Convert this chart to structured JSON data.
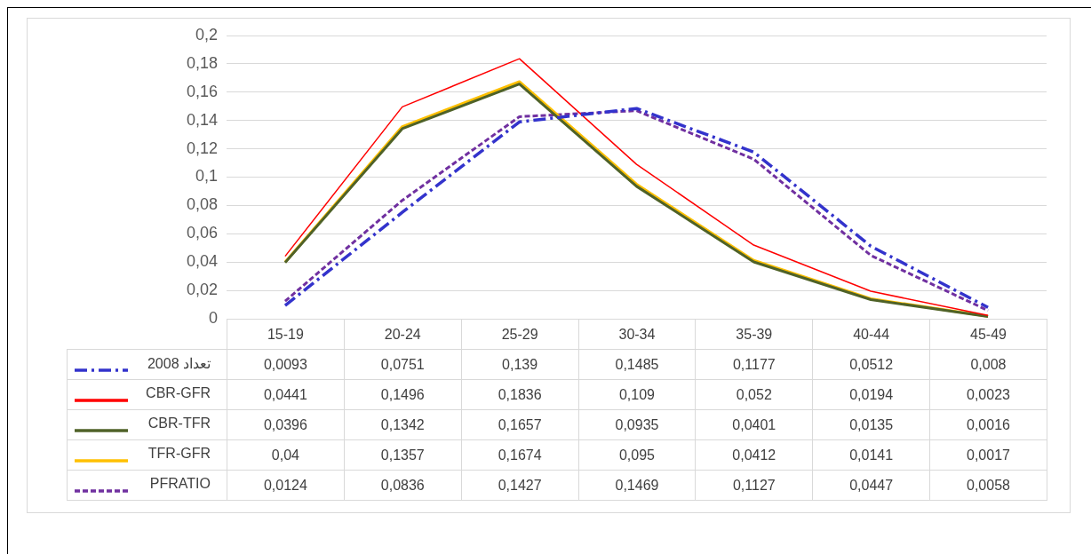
{
  "chart_data": {
    "type": "line",
    "categories": [
      "15-19",
      "20-24",
      "25-29",
      "30-34",
      "35-39",
      "40-44",
      "45-49"
    ],
    "ylim": [
      0,
      0.2
    ],
    "yticks": [
      0,
      {
        "value": 0.02,
        "label": "0,02"
      },
      {
        "value": 0.04,
        "label": "0,04"
      },
      {
        "value": 0.06,
        "label": "0,06"
      },
      {
        "value": 0.08,
        "label": "0,08"
      },
      {
        "value": 0.1,
        "label": "0,1"
      },
      {
        "value": 0.12,
        "label": "0,12"
      },
      {
        "value": 0.14,
        "label": "0,14"
      },
      {
        "value": 0.16,
        "label": "0,16"
      },
      {
        "value": 0.18,
        "label": "0,18"
      },
      {
        "value": 0.2,
        "label": "0,2"
      }
    ],
    "grid": "y",
    "legend": "bottom",
    "marker": "none",
    "series": [
      {
        "name": "تعداد 2008",
        "color": "#3333cc",
        "line_style": "dashed",
        "values": [
          0.0093,
          0.0751,
          0.139,
          0.1485,
          0.1177,
          0.0512,
          0.008
        ],
        "value_labels": [
          "0,0093",
          "0,0751",
          "0,139",
          "0,1485",
          "0,1177",
          "0,0512",
          "0,008"
        ]
      },
      {
        "name": "CBR-GFR",
        "color": "#ff0000",
        "line_style": "solid",
        "values": [
          0.0441,
          0.1496,
          0.1836,
          0.109,
          0.052,
          0.0194,
          0.0023
        ],
        "value_labels": [
          "0,0441",
          "0,1496",
          "0,1836",
          "0,109",
          "0,052",
          "0,0194",
          "0,0023"
        ]
      },
      {
        "name": "CBR-TFR",
        "color": "#4f6228",
        "line_style": "solid",
        "values": [
          0.0396,
          0.1342,
          0.1657,
          0.0935,
          0.0401,
          0.0135,
          0.0016
        ],
        "value_labels": [
          "0,0396",
          "0,1342",
          "0,1657",
          "0,0935",
          "0,0401",
          "0,0135",
          "0,0016"
        ]
      },
      {
        "name": "TFR-GFR",
        "color": "#ffc000",
        "line_style": "solid",
        "values": [
          0.04,
          0.1357,
          0.1674,
          0.095,
          0.0412,
          0.0141,
          0.0017
        ],
        "value_labels": [
          "0,04",
          "0,1357",
          "0,1674",
          "0,095",
          "0,0412",
          "0,0141",
          "0,0017"
        ]
      },
      {
        "name": "PFRATIO",
        "color": "#7030a0",
        "line_style": "dotted",
        "values": [
          0.0124,
          0.0836,
          0.1427,
          0.1469,
          0.1127,
          0.0447,
          0.0058
        ],
        "value_labels": [
          "0,0124",
          "0,0836",
          "0,1427",
          "0,1469",
          "0,1127",
          "0,0447",
          "0,0058"
        ]
      }
    ]
  }
}
